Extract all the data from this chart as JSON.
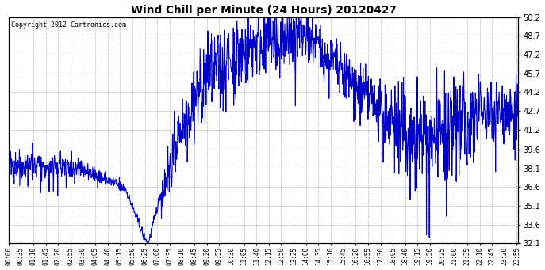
{
  "title": "Wind Chill per Minute (24 Hours) 20120427",
  "copyright_text": "Copyright 2012 Cartronics.com",
  "line_color": "#0000cc",
  "bg_color": "#ffffff",
  "grid_color": "#b0b0b0",
  "ylim": [
    32.1,
    50.2
  ],
  "yticks": [
    32.1,
    33.6,
    35.1,
    36.6,
    38.1,
    39.6,
    41.2,
    42.7,
    44.2,
    45.7,
    47.2,
    48.7,
    50.2
  ],
  "total_minutes": 1440,
  "xtick_interval": 35
}
